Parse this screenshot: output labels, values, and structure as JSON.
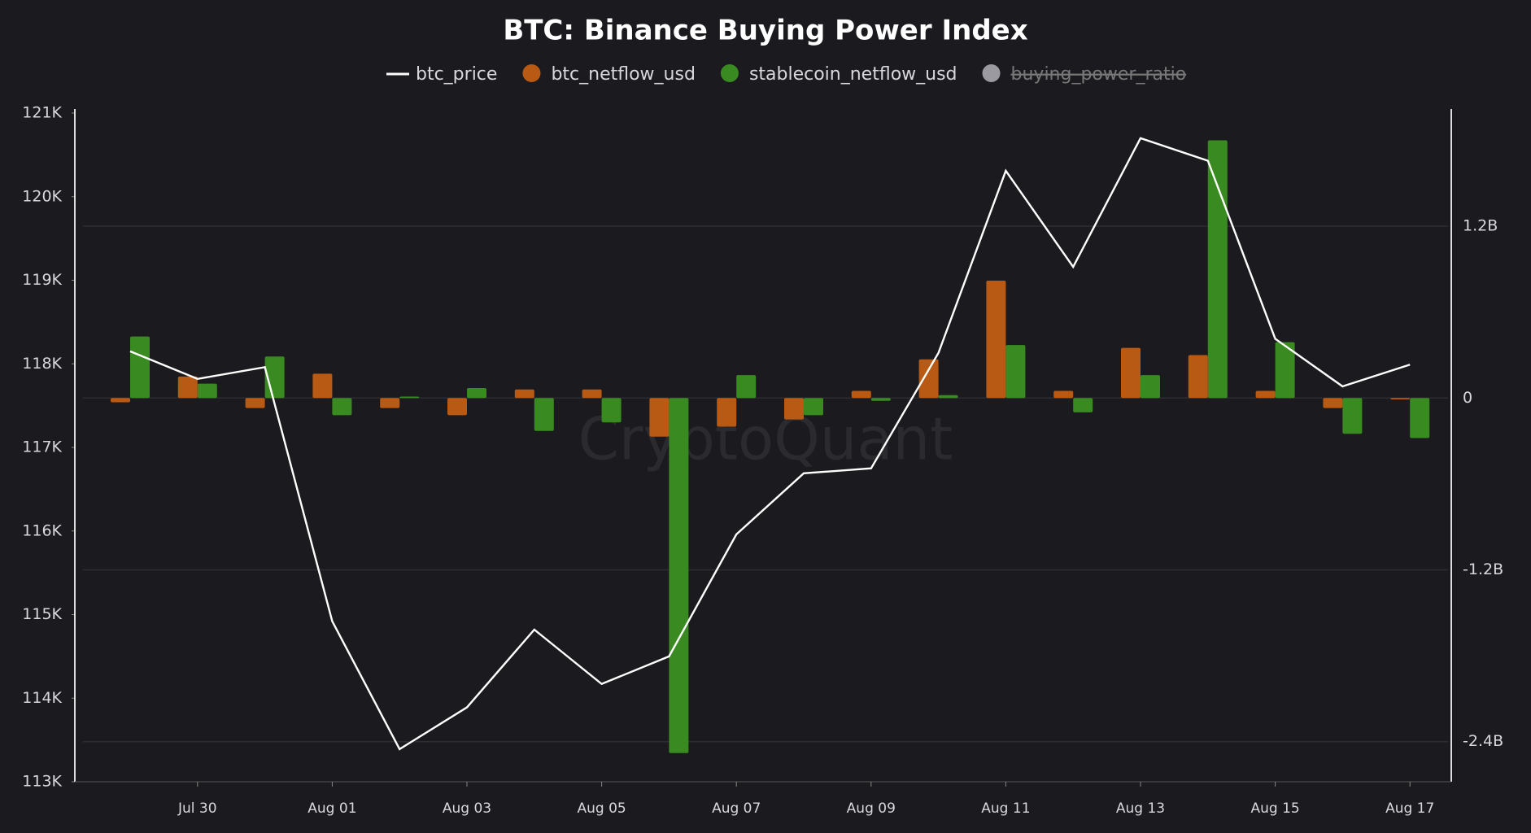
{
  "chart_data": {
    "type": "bar-line",
    "title": "BTC: Binance Buying Power Index",
    "watermark": "CryptoQuant",
    "categories": [
      null,
      "Jul 30",
      null,
      "Aug 01",
      null,
      "Aug 03",
      null,
      "Aug 05",
      null,
      "Aug 07",
      null,
      "Aug 09",
      null,
      "Aug 11",
      null,
      "Aug 13",
      null,
      "Aug 15",
      null,
      "Aug 17"
    ],
    "series": [
      {
        "name": "btc_price",
        "type": "line",
        "color": "#ffffff",
        "axis": "y",
        "values": [
          118.15,
          117.82,
          117.96,
          114.92,
          113.39,
          113.89,
          114.82,
          114.17,
          114.5,
          115.96,
          116.69,
          116.75,
          118.13,
          120.31,
          119.16,
          120.7,
          120.43,
          118.3,
          117.73,
          117.99
        ]
      },
      {
        "name": "btc_netflow_usd",
        "type": "bar",
        "color": "#b85a14",
        "axis": "y2",
        "values": [
          -0.03,
          0.15,
          -0.07,
          0.17,
          -0.07,
          -0.12,
          0.06,
          0.06,
          -0.27,
          -0.2,
          -0.15,
          0.05,
          0.27,
          0.82,
          0.05,
          0.35,
          0.3,
          0.05,
          -0.07,
          -0.01
        ]
      },
      {
        "name": "stablecoin_netflow_usd",
        "type": "bar",
        "color": "#3a8a22",
        "axis": "y2",
        "values": [
          0.43,
          0.1,
          0.29,
          -0.12,
          0.01,
          0.07,
          -0.23,
          -0.17,
          -2.48,
          0.16,
          -0.12,
          -0.02,
          0.02,
          0.37,
          -0.1,
          0.16,
          1.8,
          0.39,
          -0.25,
          -0.28
        ]
      }
    ],
    "hidden_series": [
      {
        "name": "buying_power_ratio",
        "color": "#9a9aa0"
      }
    ],
    "ylim": [
      113,
      121
    ],
    "yticks": [
      {
        "value": 113,
        "label": "113K"
      },
      {
        "value": 114,
        "label": "114K"
      },
      {
        "value": 115,
        "label": "115K"
      },
      {
        "value": 116,
        "label": "116K"
      },
      {
        "value": 117,
        "label": "117K"
      },
      {
        "value": 118,
        "label": "118K"
      },
      {
        "value": 119,
        "label": "119K"
      },
      {
        "value": 120,
        "label": "120K"
      },
      {
        "value": 121,
        "label": "121K"
      }
    ],
    "y2lim": [
      -2.68,
      1.99
    ],
    "y2ticks": [
      {
        "value": -2.4,
        "label": "-2.4B"
      },
      {
        "value": -1.2,
        "label": "-1.2B"
      },
      0,
      {
        "value": 1.2,
        "label": "1.2B"
      }
    ],
    "grid": true
  }
}
